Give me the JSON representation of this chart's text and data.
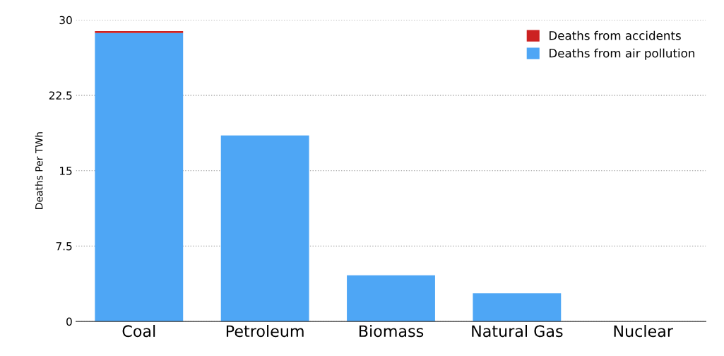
{
  "chart_data": {
    "type": "bar",
    "stacked": true,
    "ylabel": "Deaths Per TWh",
    "categories": [
      "Coal",
      "Petroleum",
      "Biomass",
      "Natural Gas",
      "Nuclear"
    ],
    "series": [
      {
        "name": "Deaths from air pollution",
        "color": "#4ea6f5",
        "values": [
          28.7,
          18.5,
          4.6,
          2.8,
          0
        ]
      },
      {
        "name": "Deaths from accidents",
        "color": "#cc2222",
        "values": [
          0.2,
          0,
          0,
          0,
          0
        ]
      }
    ],
    "ylim": [
      0,
      30
    ],
    "yticks": [
      0,
      {
        "value": 7.5,
        "label": "7.5"
      },
      15,
      {
        "value": 22.5,
        "label": "22.5"
      },
      30
    ],
    "grid": "y",
    "legend": "top right"
  }
}
